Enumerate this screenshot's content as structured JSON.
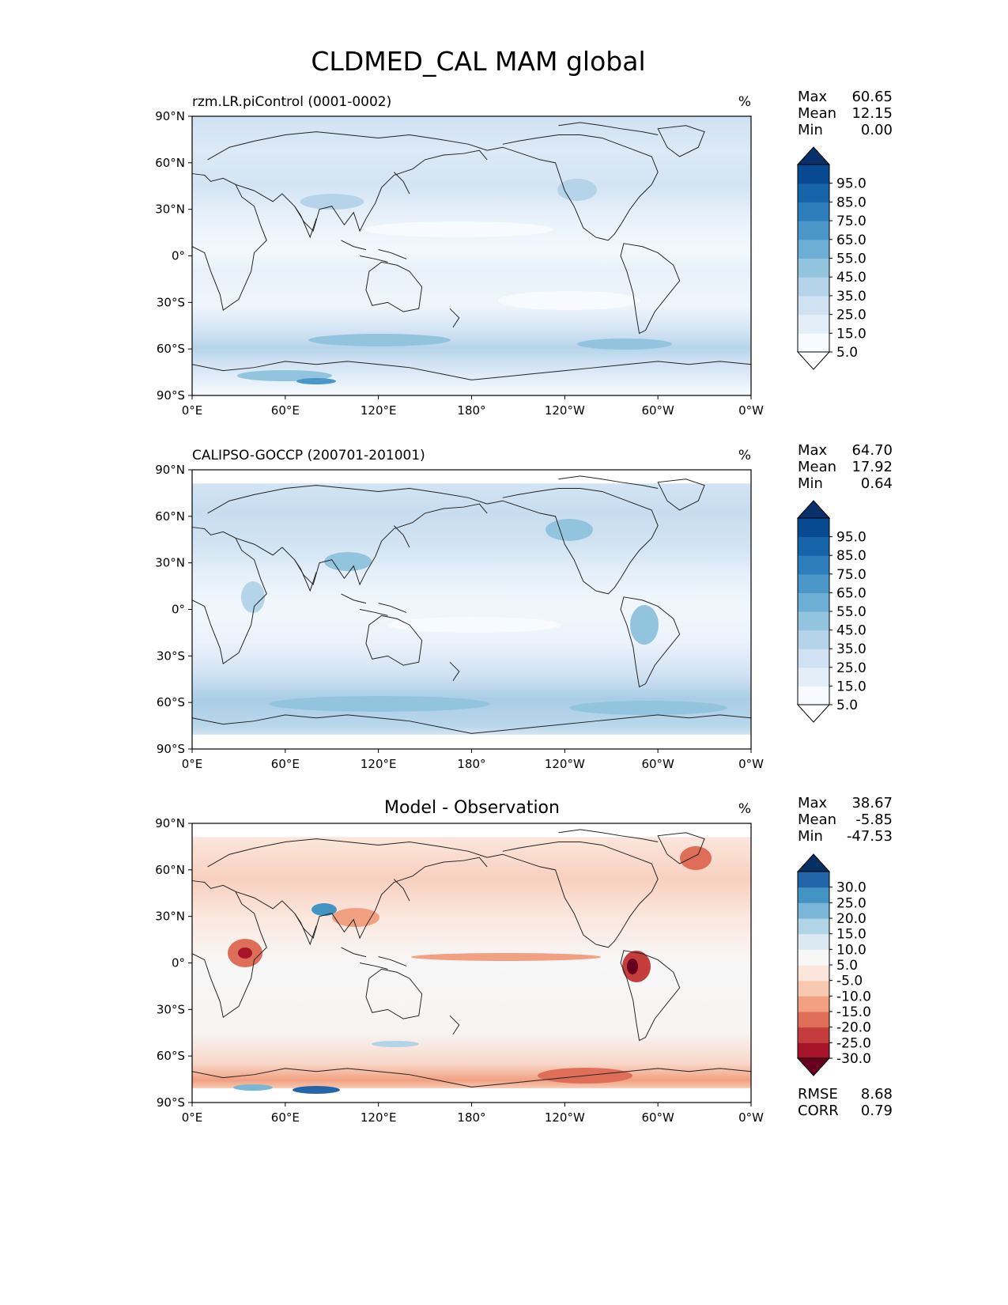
{
  "title": "CLDMED_CAL MAM global",
  "units": "%",
  "lat_ticks": [
    "90°N",
    "60°N",
    "30°N",
    "0°",
    "30°S",
    "60°S",
    "90°S"
  ],
  "lon_ticks": [
    "0°E",
    "60°E",
    "120°E",
    "180°",
    "120°W",
    "60°W",
    "0°W"
  ],
  "seq_colorbar": {
    "labels": [
      "95.0",
      "85.0",
      "75.0",
      "65.0",
      "55.0",
      "45.0",
      "35.0",
      "25.0",
      "15.0",
      "5.0"
    ],
    "colors_low_to_high": [
      "#ffffff",
      "#f7fbff",
      "#e3eef9",
      "#cfe1f2",
      "#b5d4e9",
      "#93c4de",
      "#6daed5",
      "#4b97c9",
      "#2f7ebc",
      "#1764ab",
      "#084a91",
      "#08306b"
    ]
  },
  "div_colorbar": {
    "labels": [
      "30.0",
      "25.0",
      "20.0",
      "15.0",
      "10.0",
      "5.0",
      "-5.0",
      "-10.0",
      "-15.0",
      "-20.0",
      "-25.0",
      "-30.0"
    ],
    "colors_low_to_high": [
      "#67001f",
      "#a51429",
      "#c43c3c",
      "#de6e58",
      "#f1a081",
      "#f8c9b1",
      "#fbe6dc",
      "#f7f7f7",
      "#dbeaf2",
      "#b1d5e7",
      "#79b6d7",
      "#4393c3",
      "#2266a9",
      "#053061"
    ]
  },
  "panels": [
    {
      "id": "model",
      "title": "rzm.LR.piControl (0001-0002)",
      "title_style": "left",
      "stats": {
        "max_label": "Max",
        "max": "60.65",
        "mean_label": "Mean",
        "mean": "12.15",
        "min_label": "Min",
        "min": "0.00"
      },
      "colorbar": "seq"
    },
    {
      "id": "obs",
      "title": "CALIPSO-GOCCP (200701-201001)",
      "title_style": "left",
      "stats": {
        "max_label": "Max",
        "max": "64.70",
        "mean_label": "Mean",
        "mean": "17.92",
        "min_label": "Min",
        "min": "0.64"
      },
      "colorbar": "seq"
    },
    {
      "id": "diff",
      "title": "Model - Observation",
      "title_style": "center",
      "stats": {
        "max_label": "Max",
        "max": "38.67",
        "mean_label": "Mean",
        "mean": "-5.85",
        "min_label": "Min",
        "min": "-47.53"
      },
      "colorbar": "div",
      "metrics": {
        "rmse_label": "RMSE",
        "rmse": "8.68",
        "corr_label": "CORR",
        "corr": "0.79"
      }
    }
  ]
}
